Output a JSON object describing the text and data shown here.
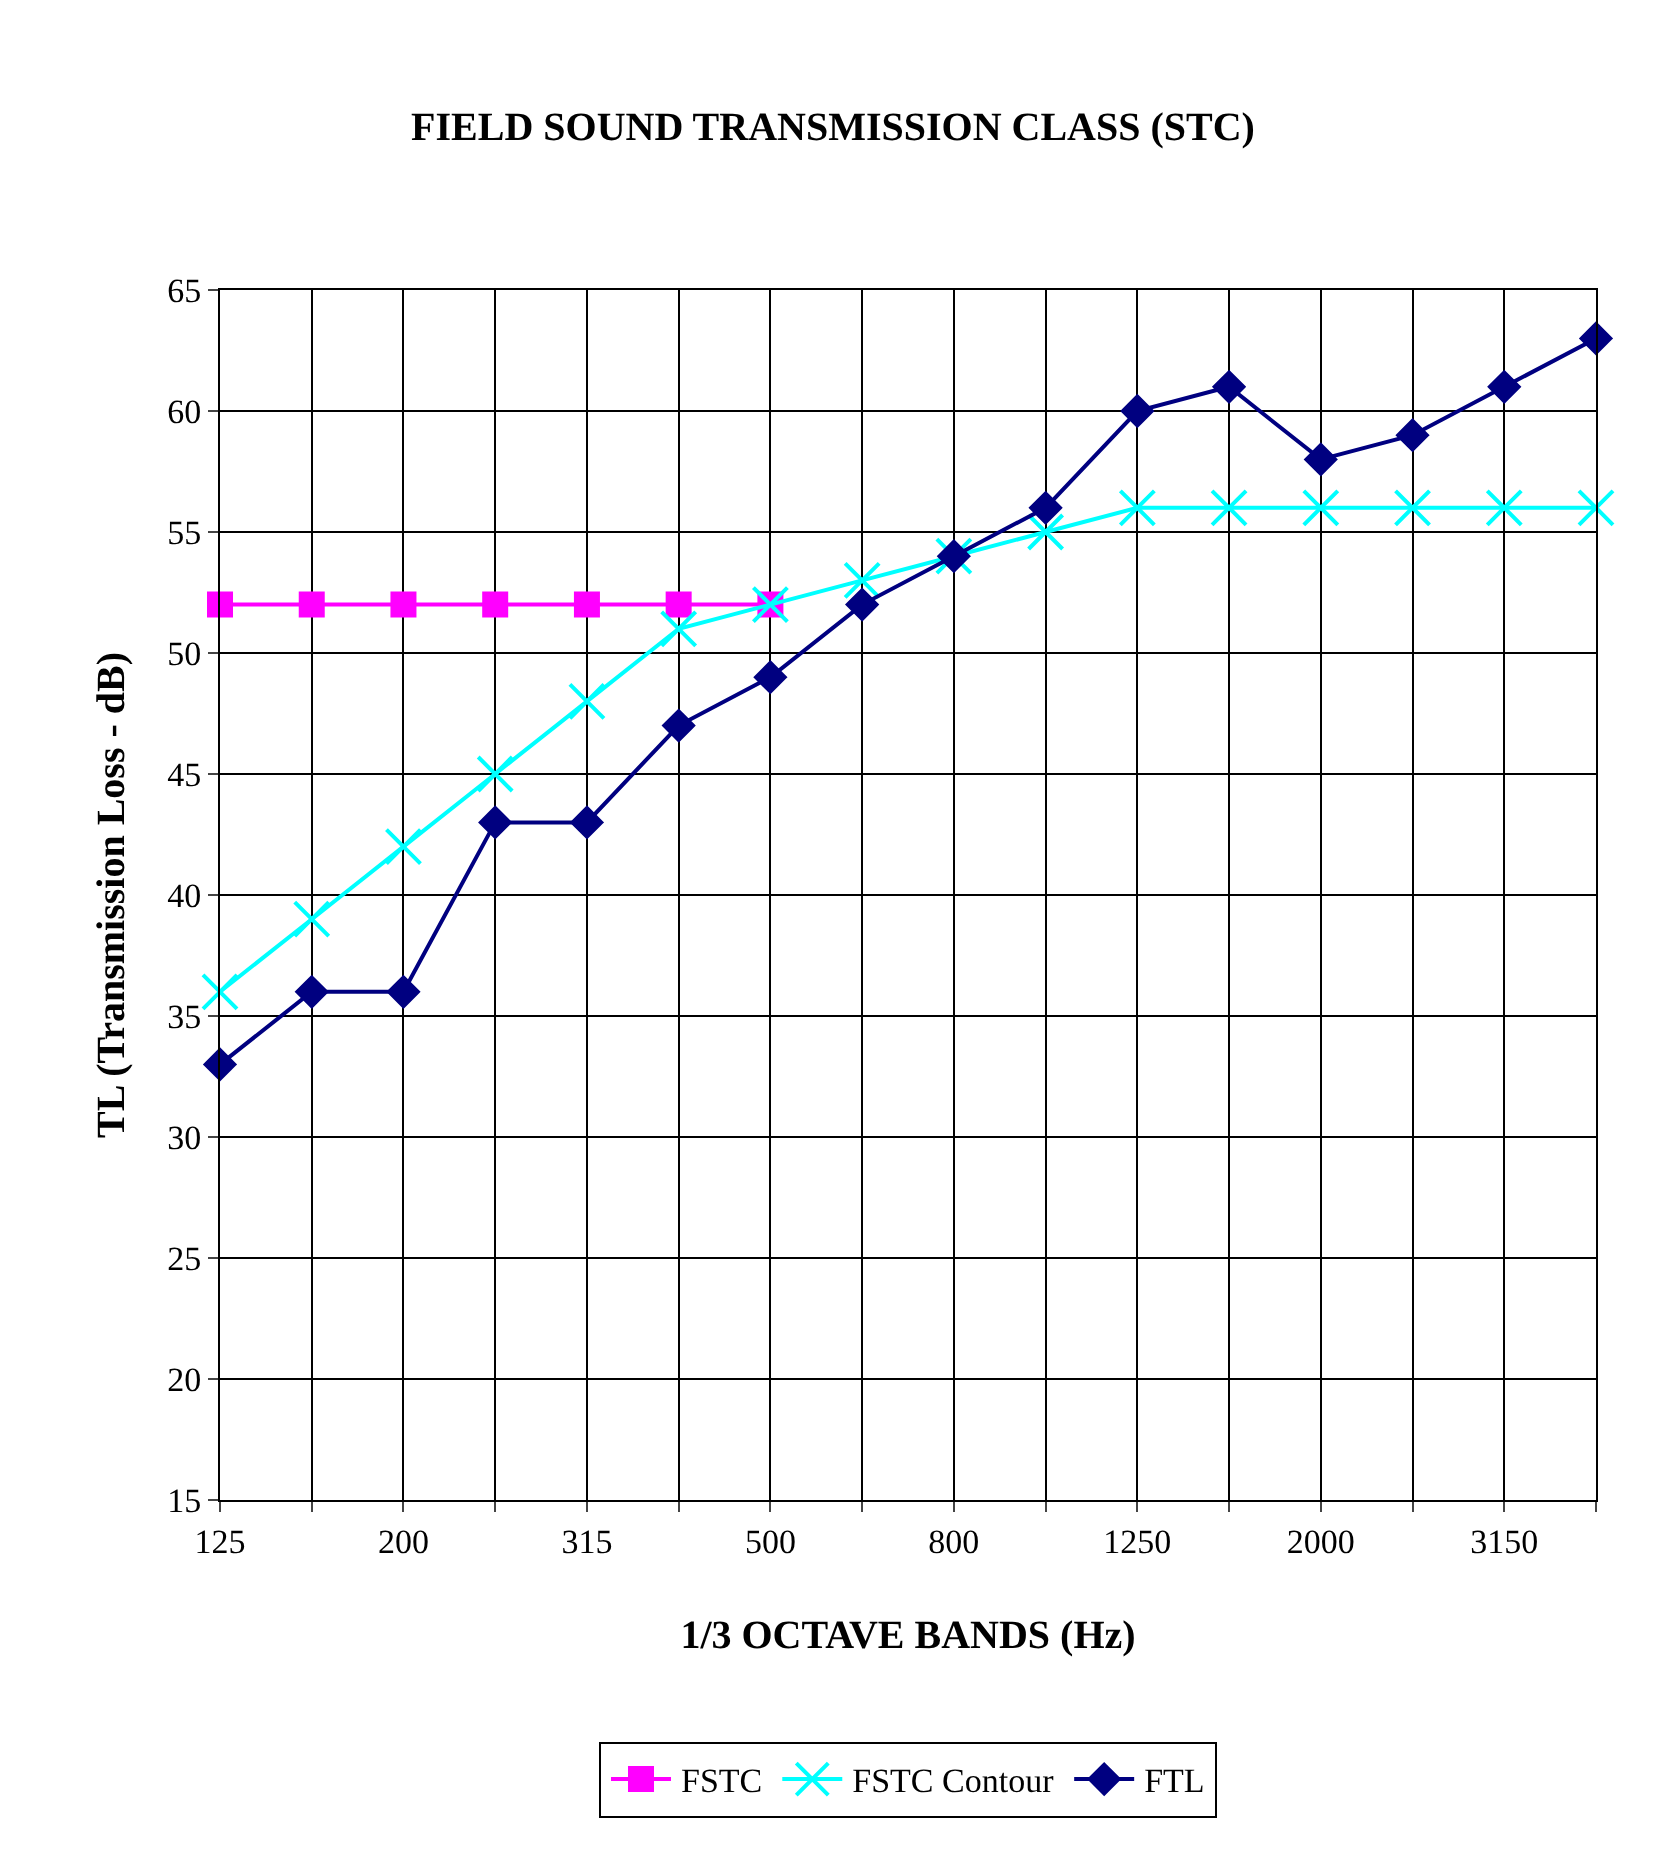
{
  "chart_data": {
    "type": "line",
    "title": "FIELD SOUND TRANSMISSION CLASS (STC)",
    "xlabel": "1/3 OCTAVE BANDS (Hz)",
    "ylabel": "TL (Transmission Loss - dB)",
    "categories": [
      "125",
      null,
      "200",
      null,
      "315",
      null,
      "500",
      null,
      "800",
      null,
      "1250",
      null,
      "2000",
      null,
      "3150",
      null
    ],
    "series": [
      {
        "name": "FSTC",
        "color": "#ff00ff",
        "marker": "square",
        "values": [
          52,
          52,
          52,
          52,
          52,
          52,
          52,
          null,
          null,
          null,
          null,
          null,
          null,
          null,
          null,
          null
        ]
      },
      {
        "name": "FSTC Contour",
        "color": "#00ffff",
        "marker": "cross",
        "values": [
          36,
          39,
          42,
          45,
          48,
          51,
          52,
          53,
          54,
          55,
          56,
          56,
          56,
          56,
          56,
          56
        ]
      },
      {
        "name": "FTL",
        "color": "#000080",
        "marker": "diamond",
        "values": [
          33,
          36,
          36,
          43,
          43,
          47,
          49,
          52,
          54,
          56,
          60,
          61,
          58,
          59,
          61,
          63
        ]
      }
    ],
    "ylim": [
      15,
      65
    ],
    "yticks": [
      15,
      20,
      25,
      30,
      35,
      40,
      45,
      50,
      55,
      60,
      65
    ],
    "grid": true,
    "legend": "bottom",
    "line_style": "solid"
  }
}
